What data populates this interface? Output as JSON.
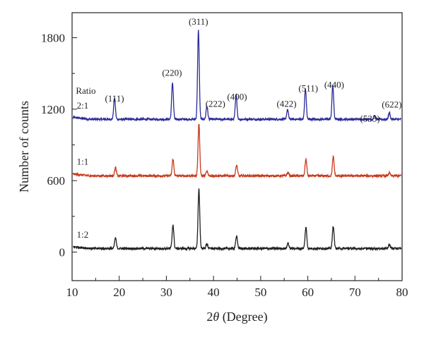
{
  "chart_data": {
    "type": "line",
    "title": "",
    "xlabel_prefix": "2",
    "xlabel_symbol": "θ",
    "xlabel_suffix": " (Degree)",
    "ylabel": "Number of counts",
    "xlim": [
      10,
      80
    ],
    "ylim": [
      -240,
      2010
    ],
    "xticks": [
      10,
      20,
      30,
      40,
      50,
      60,
      70,
      80
    ],
    "yticks": [
      0,
      600,
      1200,
      1800
    ],
    "grid": false,
    "legend_title": "Ratio",
    "series": [
      {
        "name": "2:1",
        "color": "#2a2a9a",
        "baseline": 1115,
        "label_y": 1205,
        "peaks": [
          [
            19.0,
            180
          ],
          [
            31.3,
            310
          ],
          [
            36.8,
            745
          ],
          [
            38.6,
            110
          ],
          [
            44.8,
            205
          ],
          [
            55.7,
            80
          ],
          [
            59.5,
            255
          ],
          [
            65.3,
            285
          ],
          [
            74.2,
            30
          ],
          [
            77.3,
            55
          ]
        ]
      },
      {
        "name": "1:1",
        "color": "#c93a1b",
        "baseline": 640,
        "label_y": 735,
        "peaks": [
          [
            19.2,
            70
          ],
          [
            31.4,
            140
          ],
          [
            36.9,
            440
          ],
          [
            38.6,
            40
          ],
          [
            44.9,
            90
          ],
          [
            55.8,
            30
          ],
          [
            59.6,
            140
          ],
          [
            65.4,
            160
          ],
          [
            77.3,
            25
          ]
        ]
      },
      {
        "name": "1:2",
        "color": "#1f1f1f",
        "baseline": 30,
        "label_y": 120,
        "peaks": [
          [
            19.2,
            90
          ],
          [
            31.4,
            200
          ],
          [
            36.9,
            500
          ],
          [
            38.6,
            40
          ],
          [
            44.9,
            110
          ],
          [
            55.8,
            45
          ],
          [
            59.6,
            180
          ],
          [
            65.4,
            190
          ],
          [
            77.3,
            35
          ]
        ]
      }
    ],
    "annotations": [
      {
        "text": "(111)",
        "x": 19.0,
        "y": 1265
      },
      {
        "text": "(220)",
        "x": 31.2,
        "y": 1480
      },
      {
        "text": "(311)",
        "x": 36.8,
        "y": 1910
      },
      {
        "text": "(222)",
        "x": 40.4,
        "y": 1220
      },
      {
        "text": "(400)",
        "x": 45.0,
        "y": 1280
      },
      {
        "text": "(422)",
        "x": 55.5,
        "y": 1220
      },
      {
        "text": "(511)",
        "x": 60.1,
        "y": 1350
      },
      {
        "text": "(440)",
        "x": 65.6,
        "y": 1380
      },
      {
        "text": "(533)",
        "x": 73.2,
        "y": 1095
      },
      {
        "text": "(622)",
        "x": 77.8,
        "y": 1215
      }
    ]
  }
}
